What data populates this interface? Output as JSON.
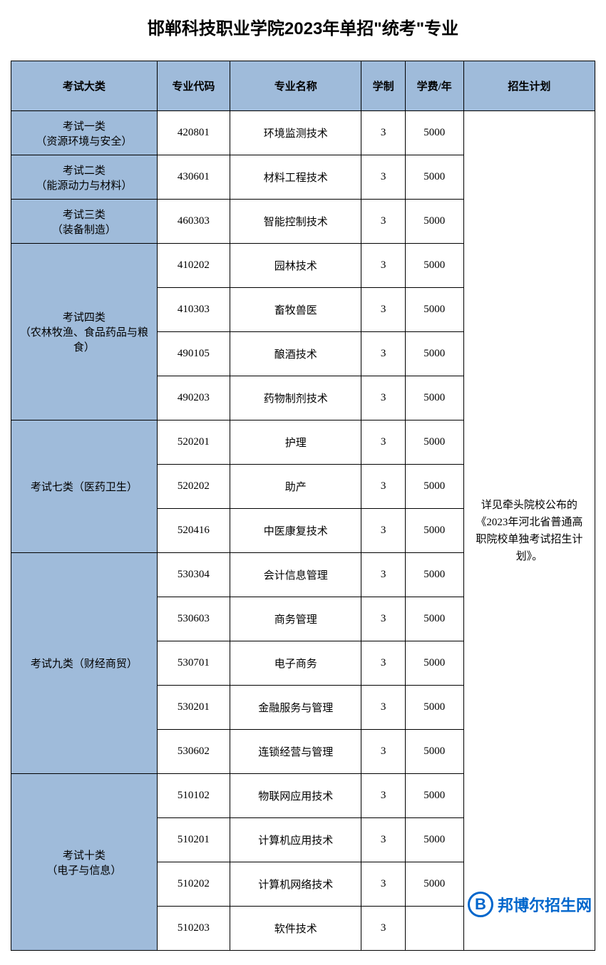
{
  "title": "邯郸科技职业学院2023年单招\"统考\"专业",
  "headers": {
    "category": "考试大类",
    "code": "专业代码",
    "name": "专业名称",
    "years": "学制",
    "fee": "学费/年",
    "plan": "招生计划"
  },
  "plan_text": "详见牵头院校公布的《2023年河北省普通高职院校单独考试招生计划》。",
  "categories": [
    {
      "label_line1": "考试一类",
      "label_line2": "（资源环境与安全）",
      "rows": [
        {
          "code": "420801",
          "name": "环境监测技术",
          "years": "3",
          "fee": "5000"
        }
      ]
    },
    {
      "label_line1": "考试二类",
      "label_line2": "（能源动力与材料）",
      "rows": [
        {
          "code": "430601",
          "name": "材料工程技术",
          "years": "3",
          "fee": "5000"
        }
      ]
    },
    {
      "label_line1": "考试三类",
      "label_line2": "（装备制造）",
      "rows": [
        {
          "code": "460303",
          "name": "智能控制技术",
          "years": "3",
          "fee": "5000"
        }
      ]
    },
    {
      "label_line1": "考试四类",
      "label_line2": "（农林牧渔、食品药品与粮食）",
      "rows": [
        {
          "code": "410202",
          "name": "园林技术",
          "years": "3",
          "fee": "5000"
        },
        {
          "code": "410303",
          "name": "畜牧兽医",
          "years": "3",
          "fee": "5000"
        },
        {
          "code": "490105",
          "name": "酿酒技术",
          "years": "3",
          "fee": "5000"
        },
        {
          "code": "490203",
          "name": "药物制剂技术",
          "years": "3",
          "fee": "5000"
        }
      ]
    },
    {
      "label_line1": "考试七类（医药卫生）",
      "label_line2": "",
      "rows": [
        {
          "code": "520201",
          "name": "护理",
          "years": "3",
          "fee": "5000"
        },
        {
          "code": "520202",
          "name": "助产",
          "years": "3",
          "fee": "5000"
        },
        {
          "code": "520416",
          "name": "中医康复技术",
          "years": "3",
          "fee": "5000"
        }
      ]
    },
    {
      "label_line1": "考试九类（财经商贸）",
      "label_line2": "",
      "rows": [
        {
          "code": "530304",
          "name": "会计信息管理",
          "years": "3",
          "fee": "5000"
        },
        {
          "code": "530603",
          "name": "商务管理",
          "years": "3",
          "fee": "5000"
        },
        {
          "code": "530701",
          "name": "电子商务",
          "years": "3",
          "fee": "5000"
        },
        {
          "code": "530201",
          "name": "金融服务与管理",
          "years": "3",
          "fee": "5000"
        },
        {
          "code": "530602",
          "name": "连锁经营与管理",
          "years": "3",
          "fee": "5000"
        }
      ]
    },
    {
      "label_line1": "考试十类",
      "label_line2": "（电子与信息）",
      "rows": [
        {
          "code": "510102",
          "name": "物联网应用技术",
          "years": "3",
          "fee": "5000"
        },
        {
          "code": "510201",
          "name": "计算机应用技术",
          "years": "3",
          "fee": "5000"
        },
        {
          "code": "510202",
          "name": "计算机网络技术",
          "years": "3",
          "fee": "5000"
        },
        {
          "code": "510203",
          "name": "软件技术",
          "years": "3",
          "fee": ""
        }
      ]
    }
  ],
  "watermark": {
    "icon_letter": "B",
    "text": "邦博尔招生网"
  },
  "colors": {
    "header_bg": "#9fbbda",
    "border": "#000000",
    "text": "#000000",
    "watermark": "#0066cc",
    "background": "#ffffff"
  }
}
